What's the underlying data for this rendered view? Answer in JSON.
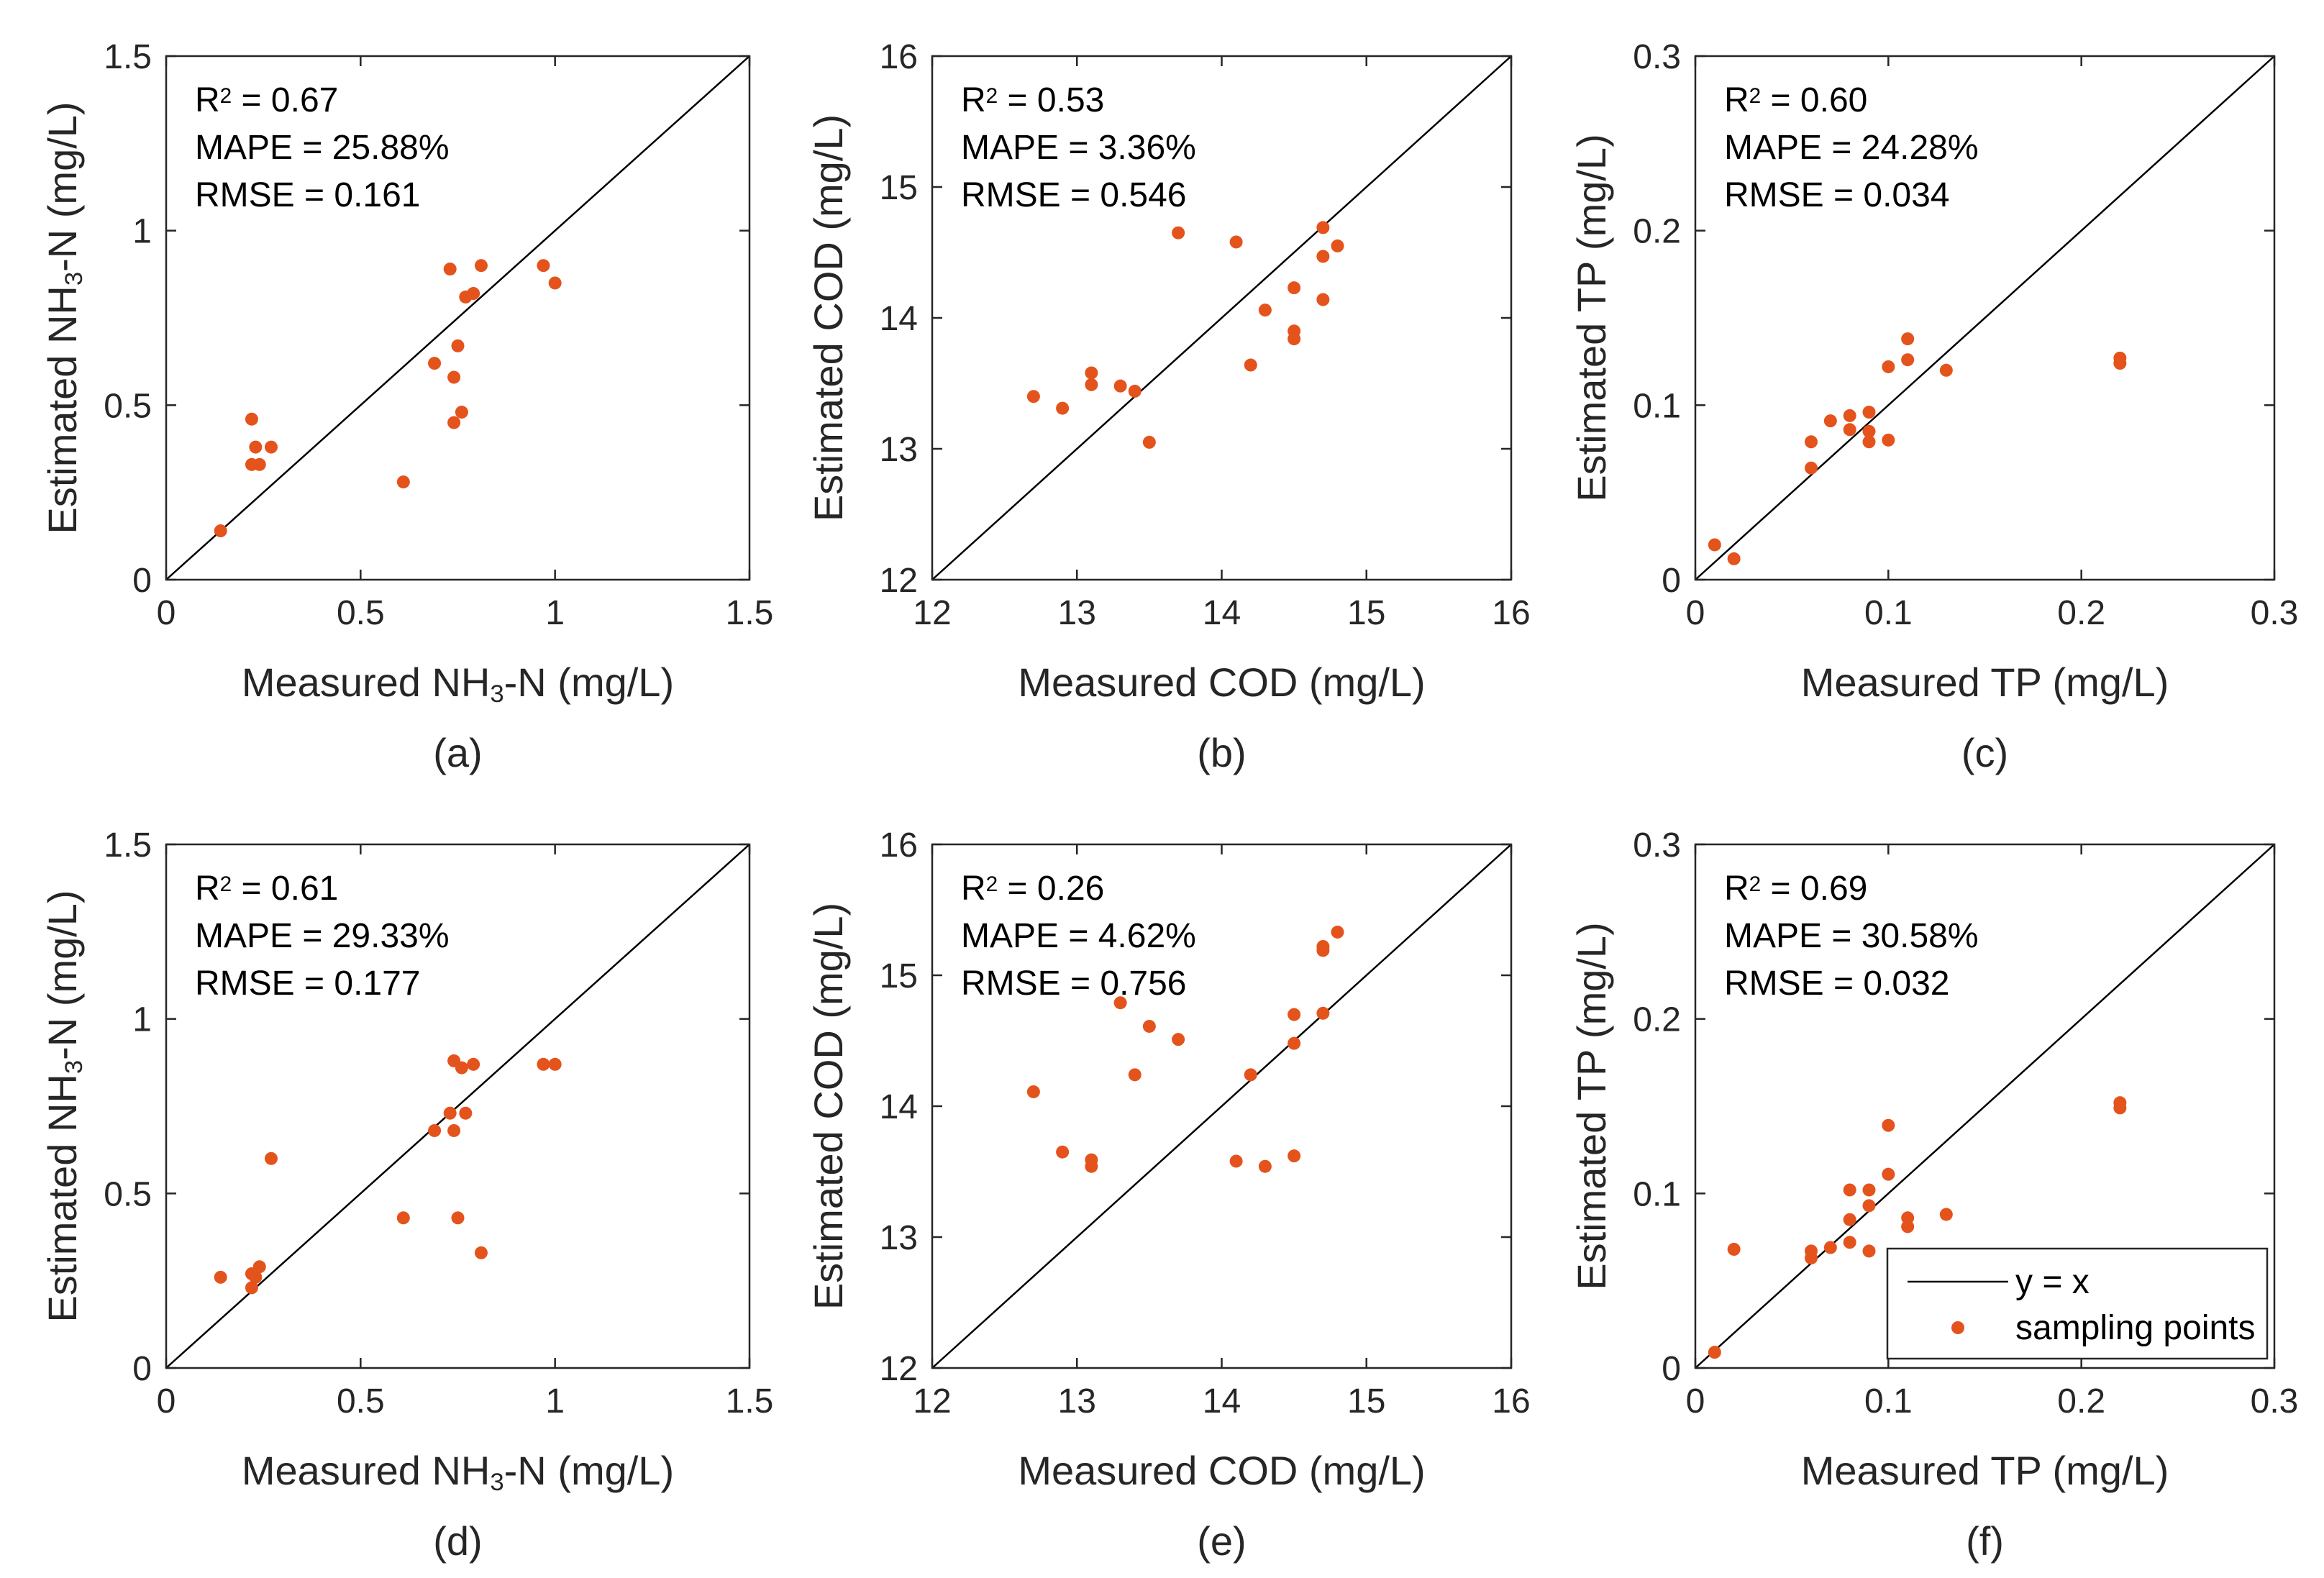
{
  "figure": {
    "point_color": "#E4531C",
    "line_color": "#000000",
    "legend": {
      "line_label": "y = x",
      "point_label": "sampling points"
    }
  },
  "chart_data": [
    {
      "type": "scatter",
      "panel_label": "(a)",
      "xlabel": "Measured NH₃-N (mg/L)",
      "ylabel": "Estimated NH₃-N (mg/L)",
      "xlim": [
        0,
        1.5
      ],
      "ylim": [
        0,
        1.5
      ],
      "xticks": [
        0,
        0.5,
        1,
        1.5
      ],
      "yticks": [
        0,
        0.5,
        1,
        1.5
      ],
      "xtick_labels": [
        "0",
        "0.5",
        "1",
        "1.5"
      ],
      "ytick_labels": [
        "0",
        "0.5",
        "1",
        "1.5"
      ],
      "stats": [
        "R² = 0.67",
        "MAPE = 25.88%",
        "RMSE = 0.161"
      ],
      "legend": false,
      "points": [
        [
          0.14,
          0.14
        ],
        [
          0.22,
          0.46
        ],
        [
          0.22,
          0.33
        ],
        [
          0.23,
          0.38
        ],
        [
          0.24,
          0.33
        ],
        [
          0.27,
          0.38
        ],
        [
          0.61,
          0.28
        ],
        [
          0.69,
          0.62
        ],
        [
          0.73,
          0.89
        ],
        [
          0.74,
          0.58
        ],
        [
          0.74,
          0.45
        ],
        [
          0.75,
          0.67
        ],
        [
          0.76,
          0.48
        ],
        [
          0.77,
          0.81
        ],
        [
          0.79,
          0.82
        ],
        [
          0.81,
          0.9
        ],
        [
          0.97,
          0.9
        ],
        [
          1.0,
          0.85
        ]
      ]
    },
    {
      "type": "scatter",
      "panel_label": "(b)",
      "xlabel": "Measured COD (mg/L)",
      "ylabel": "Estimated COD (mg/L)",
      "xlim": [
        12,
        16
      ],
      "ylim": [
        12,
        16
      ],
      "xticks": [
        12,
        13,
        14,
        15,
        16
      ],
      "yticks": [
        12,
        13,
        14,
        15,
        16
      ],
      "xtick_labels": [
        "12",
        "13",
        "14",
        "15",
        "16"
      ],
      "ytick_labels": [
        "12",
        "13",
        "14",
        "15",
        "16"
      ],
      "stats": [
        "R² = 0.53",
        "MAPE = 3.36%",
        "RMSE = 0.546"
      ],
      "legend": false,
      "points": [
        [
          12.7,
          13.4
        ],
        [
          12.9,
          13.31
        ],
        [
          13.1,
          13.58
        ],
        [
          13.1,
          13.49
        ],
        [
          13.3,
          13.48
        ],
        [
          13.4,
          13.44
        ],
        [
          13.5,
          13.05
        ],
        [
          13.7,
          14.65
        ],
        [
          14.1,
          14.58
        ],
        [
          14.2,
          13.64
        ],
        [
          14.3,
          14.06
        ],
        [
          14.5,
          14.23
        ],
        [
          14.5,
          13.9
        ],
        [
          14.5,
          13.84
        ],
        [
          14.7,
          14.69
        ],
        [
          14.7,
          14.47
        ],
        [
          14.7,
          14.14
        ],
        [
          14.8,
          14.55
        ]
      ]
    },
    {
      "type": "scatter",
      "panel_label": "(c)",
      "xlabel": "Measured TP (mg/L)",
      "ylabel": "Estimated TP (mg/L)",
      "xlim": [
        0,
        0.3
      ],
      "ylim": [
        0,
        0.3
      ],
      "xticks": [
        0,
        0.1,
        0.2,
        0.3
      ],
      "yticks": [
        0,
        0.1,
        0.2,
        0.3
      ],
      "xtick_labels": [
        "0",
        "0.1",
        "0.2",
        "0.3"
      ],
      "ytick_labels": [
        "0",
        "0.1",
        "0.2",
        "0.3"
      ],
      "stats": [
        "R² = 0.60",
        "MAPE = 24.28%",
        "RMSE = 0.034"
      ],
      "legend": false,
      "points": [
        [
          0.01,
          0.02
        ],
        [
          0.02,
          0.012
        ],
        [
          0.06,
          0.064
        ],
        [
          0.06,
          0.079
        ],
        [
          0.07,
          0.091
        ],
        [
          0.08,
          0.094
        ],
        [
          0.08,
          0.086
        ],
        [
          0.09,
          0.096
        ],
        [
          0.09,
          0.085
        ],
        [
          0.09,
          0.079
        ],
        [
          0.1,
          0.122
        ],
        [
          0.1,
          0.08
        ],
        [
          0.11,
          0.138
        ],
        [
          0.11,
          0.126
        ],
        [
          0.13,
          0.12
        ],
        [
          0.22,
          0.127
        ],
        [
          0.22,
          0.124
        ]
      ]
    },
    {
      "type": "scatter",
      "panel_label": "(d)",
      "xlabel": "Measured NH₃-N (mg/L)",
      "ylabel": "Estimated NH₃-N (mg/L)",
      "xlim": [
        0,
        1.5
      ],
      "ylim": [
        0,
        1.5
      ],
      "xticks": [
        0,
        0.5,
        1,
        1.5
      ],
      "yticks": [
        0,
        0.5,
        1,
        1.5
      ],
      "xtick_labels": [
        "0",
        "0.5",
        "1",
        "1.5"
      ],
      "ytick_labels": [
        "0",
        "0.5",
        "1",
        "1.5"
      ],
      "stats": [
        "R² = 0.61",
        "MAPE = 29.33%",
        "RMSE = 0.177"
      ],
      "legend": false,
      "points": [
        [
          0.14,
          0.26
        ],
        [
          0.22,
          0.23
        ],
        [
          0.22,
          0.27
        ],
        [
          0.23,
          0.26
        ],
        [
          0.24,
          0.29
        ],
        [
          0.27,
          0.6
        ],
        [
          0.61,
          0.43
        ],
        [
          0.69,
          0.68
        ],
        [
          0.73,
          0.73
        ],
        [
          0.74,
          0.88
        ],
        [
          0.74,
          0.68
        ],
        [
          0.75,
          0.43
        ],
        [
          0.76,
          0.86
        ],
        [
          0.77,
          0.73
        ],
        [
          0.79,
          0.87
        ],
        [
          0.81,
          0.33
        ],
        [
          0.97,
          0.87
        ],
        [
          1.0,
          0.87
        ]
      ]
    },
    {
      "type": "scatter",
      "panel_label": "(e)",
      "xlabel": "Measured COD (mg/L)",
      "ylabel": "Estimated COD (mg/L)",
      "xlim": [
        12,
        16
      ],
      "ylim": [
        12,
        16
      ],
      "xticks": [
        12,
        13,
        14,
        15,
        16
      ],
      "yticks": [
        12,
        13,
        14,
        15,
        16
      ],
      "xtick_labels": [
        "12",
        "13",
        "14",
        "15",
        "16"
      ],
      "ytick_labels": [
        "12",
        "13",
        "14",
        "15",
        "16"
      ],
      "stats": [
        "R² = 0.26",
        "MAPE = 4.62%",
        "RMSE = 0.756"
      ],
      "legend": false,
      "points": [
        [
          12.7,
          14.11
        ],
        [
          12.9,
          13.65
        ],
        [
          13.1,
          13.59
        ],
        [
          13.1,
          13.54
        ],
        [
          13.3,
          14.79
        ],
        [
          13.4,
          14.24
        ],
        [
          13.5,
          14.61
        ],
        [
          13.7,
          14.51
        ],
        [
          14.1,
          13.58
        ],
        [
          14.2,
          14.24
        ],
        [
          14.3,
          13.54
        ],
        [
          14.5,
          13.62
        ],
        [
          14.5,
          14.48
        ],
        [
          14.5,
          14.7
        ],
        [
          14.7,
          15.19
        ],
        [
          14.7,
          15.22
        ],
        [
          14.7,
          14.71
        ],
        [
          14.8,
          15.33
        ]
      ]
    },
    {
      "type": "scatter",
      "panel_label": "(f)",
      "xlabel": "Measured TP (mg/L)",
      "ylabel": "Estimated TP (mg/L)",
      "xlim": [
        0,
        0.3
      ],
      "ylim": [
        0,
        0.3
      ],
      "xticks": [
        0,
        0.1,
        0.2,
        0.3
      ],
      "yticks": [
        0,
        0.1,
        0.2,
        0.3
      ],
      "xtick_labels": [
        "0",
        "0.1",
        "0.2",
        "0.3"
      ],
      "ytick_labels": [
        "0",
        "0.1",
        "0.2",
        "0.3"
      ],
      "stats": [
        "R² = 0.69",
        "MAPE = 30.58%",
        "RMSE = 0.032"
      ],
      "legend": true,
      "points": [
        [
          0.01,
          0.009
        ],
        [
          0.02,
          0.068
        ],
        [
          0.06,
          0.063
        ],
        [
          0.06,
          0.067
        ],
        [
          0.07,
          0.069
        ],
        [
          0.08,
          0.072
        ],
        [
          0.08,
          0.085
        ],
        [
          0.08,
          0.102
        ],
        [
          0.09,
          0.067
        ],
        [
          0.09,
          0.093
        ],
        [
          0.09,
          0.102
        ],
        [
          0.1,
          0.111
        ],
        [
          0.1,
          0.139
        ],
        [
          0.11,
          0.081
        ],
        [
          0.11,
          0.086
        ],
        [
          0.13,
          0.088
        ],
        [
          0.22,
          0.149
        ],
        [
          0.22,
          0.152
        ]
      ]
    }
  ]
}
